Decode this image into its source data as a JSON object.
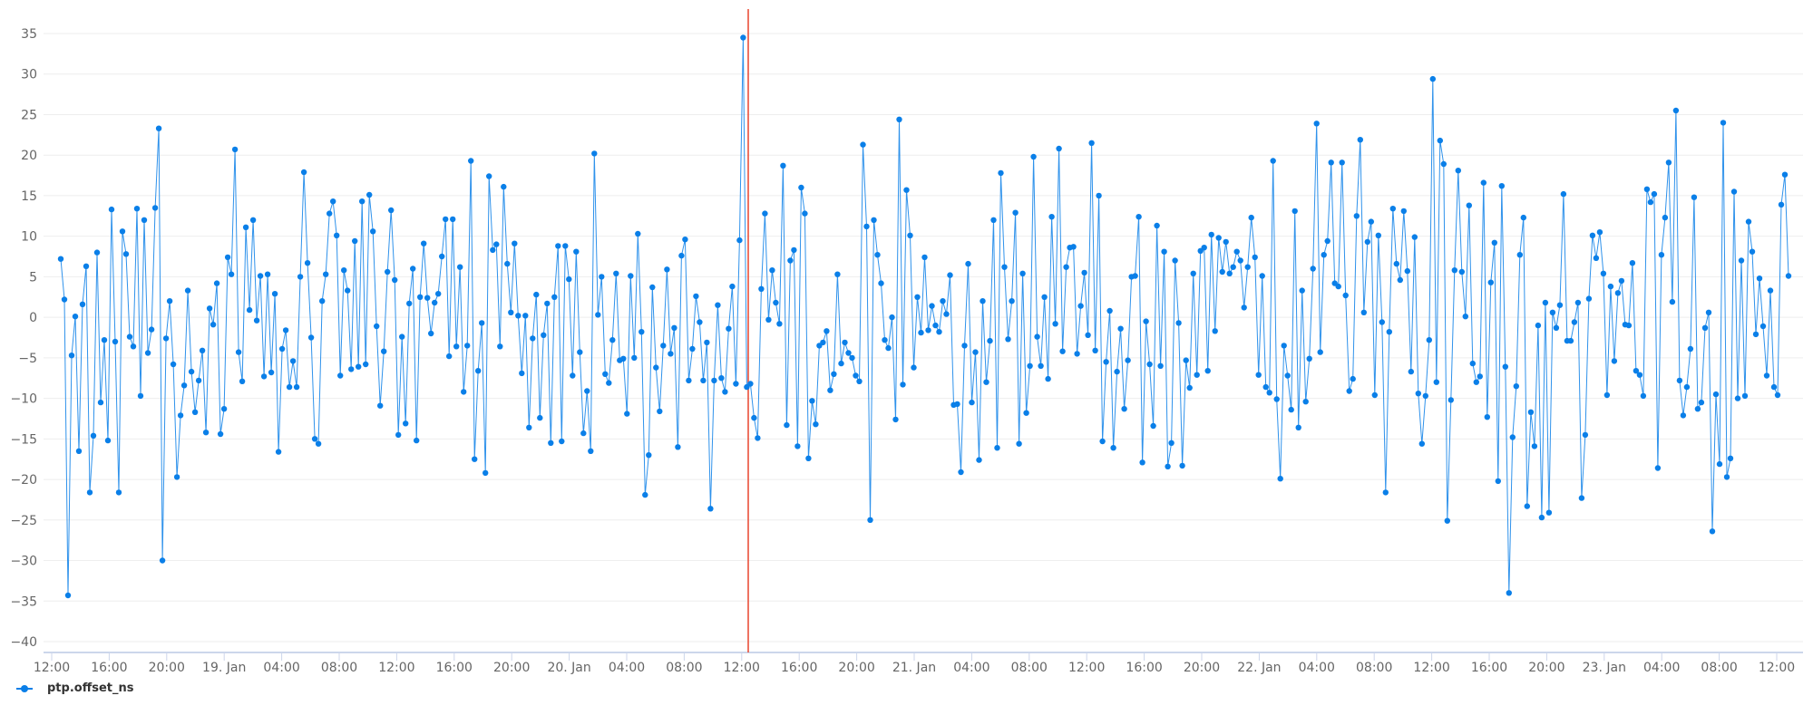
{
  "chart_data": {
    "type": "line",
    "title": "",
    "xlabel": "",
    "ylabel": "",
    "ylim": [
      -40,
      35
    ],
    "grid": true,
    "legend_position": "bottom-left",
    "y_ticks": [
      "35",
      "30",
      "25",
      "20",
      "15",
      "10",
      "5",
      "0",
      "-5",
      "-10",
      "-15",
      "-20",
      "-25",
      "-30",
      "-35",
      "-40"
    ],
    "x_ticks": [
      "12:00",
      "16:00",
      "20:00",
      "19. Jan",
      "04:00",
      "08:00",
      "12:00",
      "16:00",
      "20:00",
      "20. Jan",
      "04:00",
      "08:00",
      "12:00",
      "16:00",
      "20:00",
      "21. Jan",
      "04:00",
      "08:00",
      "12:00",
      "16:00",
      "20:00",
      "22. Jan",
      "04:00",
      "08:00",
      "12:00",
      "16:00",
      "20:00",
      "23. Jan",
      "04:00",
      "08:00",
      "12:00"
    ],
    "x_range": [
      "18. Jan 12:40",
      "23. Jan 12:35"
    ],
    "marker_line": {
      "position": "20. Jan 12:30",
      "color": "#e8452e"
    },
    "series": [
      {
        "name": "ptp.offset_ns",
        "color": "#0a7fe8",
        "values": [
          7.2,
          2.2,
          -34.3,
          -4.7,
          0.1,
          -16.5,
          1.6,
          6.3,
          -21.6,
          -14.6,
          8.0,
          -10.5,
          -2.8,
          -15.2,
          13.3,
          -3.0,
          -21.6,
          10.6,
          7.8,
          -2.4,
          -3.6,
          13.4,
          -9.7,
          12.0,
          -4.4,
          -1.5,
          13.5,
          23.3,
          -30.0,
          -2.6,
          2.0,
          -5.8,
          -19.7,
          -12.1,
          -8.4,
          3.3,
          -6.7,
          -11.7,
          -7.8,
          -4.1,
          -14.2,
          1.1,
          -0.9,
          4.2,
          -14.4,
          -11.3,
          7.4,
          5.3,
          20.7,
          -4.3,
          -7.9,
          11.1,
          0.9,
          12.0,
          -0.4,
          5.1,
          -7.3,
          5.3,
          -6.8,
          2.9,
          -16.6,
          -3.9,
          -1.6,
          -8.6,
          -5.4,
          -8.6,
          5.0,
          17.9,
          6.7,
          -2.5,
          -15.0,
          -15.6,
          2.0,
          5.3,
          12.8,
          14.3,
          10.1,
          -7.2,
          5.8,
          3.3,
          -6.4,
          9.4,
          -6.1,
          14.3,
          -5.8,
          15.1,
          10.6,
          -1.1,
          -10.9,
          -4.2,
          5.6,
          13.2,
          4.6,
          -14.5,
          -2.4,
          -13.1,
          1.7,
          6.0,
          -15.2,
          2.5,
          9.1,
          2.4,
          -2.0,
          1.8,
          2.9,
          7.5,
          12.1,
          -4.8,
          12.1,
          -3.6,
          6.2,
          -9.2,
          -3.5,
          19.3,
          -17.5,
          -6.6,
          -0.7,
          -19.2,
          17.4,
          8.3,
          9.0,
          -3.6,
          16.1,
          6.6,
          0.6,
          9.1,
          0.2,
          -6.9,
          0.2,
          -13.6,
          -2.6,
          2.8,
          -12.4,
          -2.2,
          1.7,
          -15.5,
          2.5,
          8.8,
          -15.3,
          8.8,
          4.7,
          -7.2,
          8.1,
          -4.3,
          -14.3,
          -9.1,
          -16.5,
          20.2,
          0.3,
          5.0,
          -7.0,
          -8.1,
          -2.8,
          5.4,
          -5.3,
          -5.1,
          -11.9,
          5.1,
          -5.0,
          10.3,
          -1.8,
          -21.9,
          -17.0,
          3.7,
          -6.2,
          -11.6,
          -3.5,
          5.9,
          -4.5,
          -1.3,
          -16.0,
          7.6,
          9.6,
          -7.8,
          -3.9,
          2.6,
          -0.6,
          -7.8,
          -3.1,
          -23.6,
          -7.8,
          1.5,
          -7.5,
          -9.2,
          -1.4,
          3.8,
          -8.2,
          9.5,
          34.5,
          -8.6,
          -8.2,
          -12.4,
          -14.9,
          3.5,
          12.8,
          -0.3,
          5.8,
          1.8,
          -0.8,
          18.7,
          -13.3,
          7.0,
          8.3,
          -15.9,
          16.0,
          12.8,
          -17.4,
          -10.3,
          -13.2,
          -3.5,
          -3.1,
          -1.7,
          -9.0,
          -7.0,
          5.3,
          -5.7,
          -3.1,
          -4.4,
          -5.0,
          -7.2,
          -7.9,
          21.3,
          11.2,
          -25.0,
          12.0,
          7.7,
          4.2,
          -2.8,
          -3.8,
          0.0,
          -12.6,
          24.4,
          -8.3,
          15.7,
          10.1,
          -6.2,
          2.5,
          -1.9,
          7.4,
          -1.6,
          1.4,
          -1.0,
          -1.8,
          2.0,
          0.4,
          5.2,
          -10.8,
          -10.7,
          -19.1,
          -3.5,
          6.6,
          -10.5,
          -4.3,
          -17.6,
          2.0,
          -8.0,
          -2.9,
          12.0,
          -16.1,
          17.8,
          6.2,
          -2.7,
          2.0,
          12.9,
          -15.6,
          5.4,
          -11.8,
          -6.0,
          19.8,
          -2.4,
          -6.0,
          2.5,
          -7.6,
          12.4,
          -0.8,
          20.8,
          -4.2,
          6.2,
          8.6,
          8.7,
          -4.5,
          1.4,
          5.5,
          -2.2,
          21.5,
          -4.1,
          15.0,
          -15.3,
          -5.5,
          0.8,
          -16.1,
          -6.7,
          -1.4,
          -11.3,
          -5.3,
          5.0,
          5.1,
          12.4,
          -17.9,
          -0.5,
          -5.8,
          -13.4,
          11.3,
          -6.0,
          8.1,
          -18.4,
          -15.5,
          7.0,
          -0.7,
          -18.3,
          -5.3,
          -8.7,
          5.4,
          -7.1,
          8.2,
          8.6,
          -6.6,
          10.2,
          -1.7,
          9.8,
          5.6,
          9.3,
          5.4,
          6.2,
          8.1,
          7.0,
          1.2,
          6.2,
          12.3,
          7.4,
          -7.1,
          5.1,
          -8.6,
          -9.3,
          19.3,
          -10.1,
          -19.9,
          -3.5,
          -7.2,
          -11.4,
          13.1,
          -13.6,
          3.3,
          -10.4,
          -5.1,
          6.0,
          23.9,
          -4.3,
          7.7,
          9.4,
          19.1,
          4.2,
          3.8,
          19.1,
          2.7,
          -9.1,
          -7.6,
          12.5,
          21.9,
          0.6,
          9.3,
          11.8,
          -9.6,
          10.1,
          -0.6,
          -21.6,
          -1.8,
          13.4,
          6.6,
          4.6,
          13.1,
          5.7,
          -6.7,
          9.9,
          -9.4,
          -15.6,
          -9.7,
          -2.8,
          29.4,
          -8.0,
          21.8,
          18.9,
          -25.1,
          -10.2,
          5.8,
          18.1,
          5.6,
          0.1,
          13.8,
          -5.7,
          -8.0,
          -7.3,
          16.6,
          -12.3,
          4.3,
          9.2,
          -20.2,
          16.2,
          -6.1,
          -34.0,
          -14.8,
          -8.5,
          7.7,
          12.3,
          -23.3,
          -11.7,
          -15.9,
          -1.0,
          -24.7,
          1.8,
          -24.1,
          0.6,
          -1.3,
          1.5,
          15.2,
          -2.9,
          -2.9,
          -0.6,
          1.8,
          -22.3,
          -14.5,
          2.3,
          10.1,
          7.3,
          10.5,
          5.4,
          -9.6,
          3.8,
          -5.4,
          3.0,
          4.5,
          -0.9,
          -1.0,
          6.7,
          -6.6,
          -7.1,
          -9.7,
          15.8,
          14.2,
          15.2,
          -18.6,
          7.7,
          12.3,
          19.1,
          1.9,
          25.5,
          -7.8,
          -12.1,
          -8.6,
          -3.9,
          14.8,
          -11.3,
          -10.5,
          -1.3,
          0.6,
          -26.4,
          -9.5,
          -18.1,
          24.0,
          -19.7,
          -17.4,
          15.5,
          -10.0,
          7.0,
          -9.7,
          11.8,
          8.1,
          -2.1,
          4.8,
          -1.1,
          -7.2,
          3.3,
          -8.6,
          -9.6,
          13.9,
          17.6,
          5.1
        ]
      }
    ]
  },
  "legend": {
    "items": [
      {
        "label": "ptp.offset_ns",
        "color": "#0a7fe8"
      }
    ]
  },
  "colors": {
    "series": "#0a7fe8",
    "marker_line": "#e8452e",
    "grid": "#eeeeee",
    "axis": "#ccd6eb",
    "label": "#666666"
  }
}
